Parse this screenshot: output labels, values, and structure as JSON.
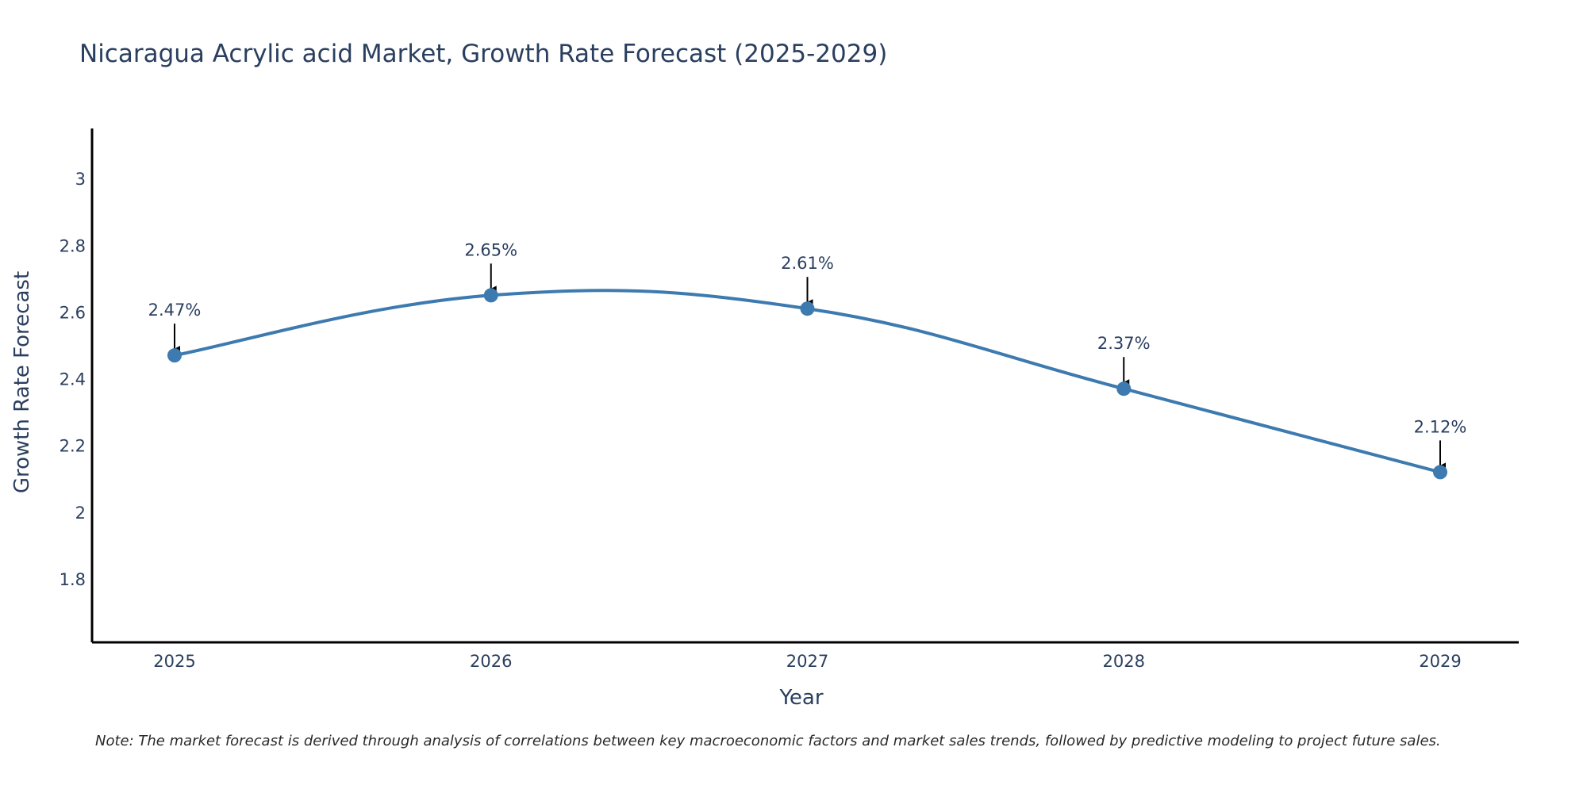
{
  "chart_data": {
    "type": "line",
    "title": "Nicaragua Acrylic acid Market, Growth Rate Forecast (2025-2029)",
    "xlabel": "Year",
    "ylabel": "Growth Rate Forecast",
    "categories": [
      "2025",
      "2026",
      "2027",
      "2028",
      "2029"
    ],
    "series": [
      {
        "name": "Growth Rate Forecast",
        "values": [
          2.47,
          2.65,
          2.61,
          2.37,
          2.12
        ]
      }
    ],
    "data_labels": [
      "2.47%",
      "2.65%",
      "2.61%",
      "2.37%",
      "2.12%"
    ],
    "ylim": [
      1.61,
      3.15
    ],
    "yticks": [
      1.8,
      2,
      2.2,
      2.4,
      2.6,
      2.8,
      3
    ],
    "ytick_labels": [
      "1.8",
      "2",
      "2.2",
      "2.4",
      "2.6",
      "2.8",
      "3"
    ],
    "grid": false,
    "line_color": "#3d7aaf",
    "marker_color": "#3d7aaf",
    "arrow_color": "#000000",
    "note": "Note: The market forecast is derived through analysis of correlations between key macroeconomic factors and market sales trends, followed by predictive modeling to project future sales."
  }
}
